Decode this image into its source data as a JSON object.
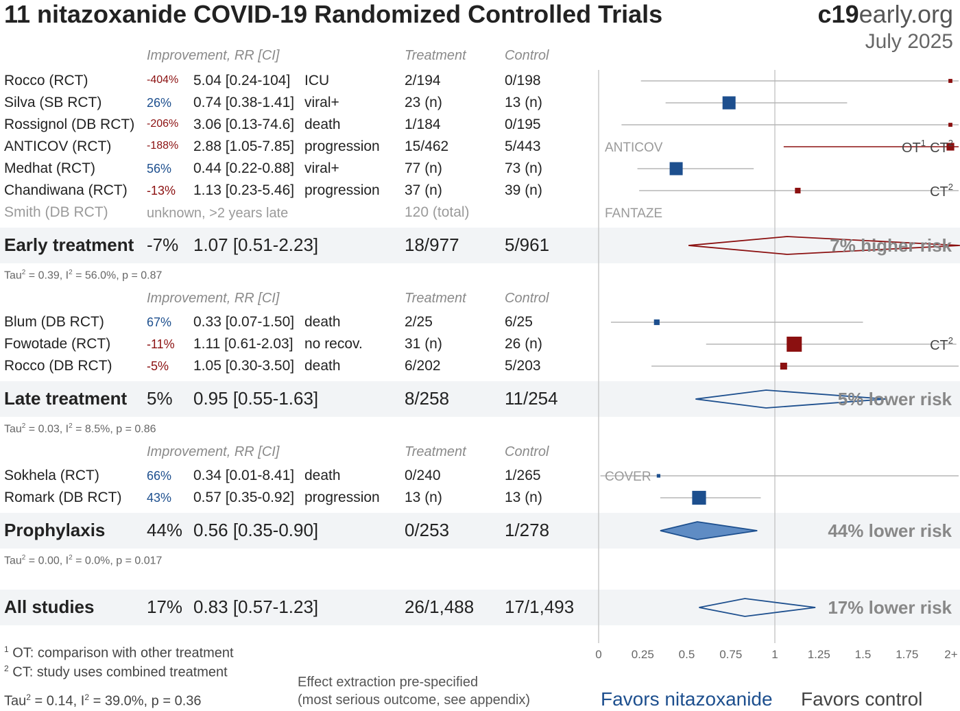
{
  "title": "11 nitazoxanide COVID-19 Randomized Controlled Trials",
  "brand": {
    "part1": "c19",
    "part2": "early.org",
    "date": "July 2025"
  },
  "headers": {
    "improvement": "Improvement, RR [CI]",
    "treatment": "Treatment",
    "control": "Control"
  },
  "sections": [
    {
      "name": "early",
      "studies": [
        {
          "name": "Rocco (RCT)",
          "improvement": "-404%",
          "rr_text": "5.04 [0.24-104]",
          "outcome": "ICU",
          "treatment": "2/194",
          "control": "0/198"
        },
        {
          "name": "Silva (SB RCT)",
          "improvement": "26%",
          "rr_text": "0.74 [0.38-1.41]",
          "outcome": "viral+",
          "treatment": "23 (n)",
          "control": "13 (n)"
        },
        {
          "name": "Rossignol (DB RCT)",
          "improvement": "-206%",
          "rr_text": "3.06 [0.13-74.6]",
          "outcome": "death",
          "treatment": "1/184",
          "control": "0/195"
        },
        {
          "name": "ANTICOV (RCT)",
          "improvement": "-188%",
          "rr_text": "2.88 [1.05-7.85]",
          "outcome": "progression",
          "treatment": "15/462",
          "control": "5/443"
        },
        {
          "name": "Medhat (RCT)",
          "improvement": "56%",
          "rr_text": "0.44 [0.22-0.88]",
          "outcome": "viral+",
          "treatment": "77 (n)",
          "control": "73 (n)"
        },
        {
          "name": "Chandiwana (RCT)",
          "improvement": "-13%",
          "rr_text": "1.13 [0.23-5.46]",
          "outcome": "progression",
          "treatment": "37 (n)",
          "control": "39 (n)"
        },
        {
          "name": "Smith (DB RCT)",
          "improvement": "unknown, >2 years late",
          "rr_text": "",
          "outcome": "",
          "treatment": "120 (total)",
          "control": ""
        }
      ],
      "summary": {
        "label": "Early treatment",
        "improvement": "-7%",
        "rr_text": "1.07 [0.51-2.23]",
        "treatment": "18/977",
        "control": "5/961",
        "risk": "7% higher risk"
      },
      "stats": {
        "tau2": "0.39",
        "i2": "56.0%",
        "p": "0.87"
      }
    },
    {
      "name": "late",
      "studies": [
        {
          "name": "Blum (DB RCT)",
          "improvement": "67%",
          "rr_text": "0.33 [0.07-1.50]",
          "outcome": "death",
          "treatment": "2/25",
          "control": "6/25"
        },
        {
          "name": "Fowotade (RCT)",
          "improvement": "-11%",
          "rr_text": "1.11 [0.61-2.03]",
          "outcome": "no recov.",
          "treatment": "31 (n)",
          "control": "26 (n)"
        },
        {
          "name": "Rocco (DB RCT)",
          "improvement": "-5%",
          "rr_text": "1.05 [0.30-3.50]",
          "outcome": "death",
          "treatment": "6/202",
          "control": "5/203"
        }
      ],
      "summary": {
        "label": "Late treatment",
        "improvement": "5%",
        "rr_text": "0.95 [0.55-1.63]",
        "treatment": "8/258",
        "control": "11/254",
        "risk": "5% lower risk"
      },
      "stats": {
        "tau2": "0.03",
        "i2": "8.5%",
        "p": "0.86"
      }
    },
    {
      "name": "prophylaxis",
      "studies": [
        {
          "name": "Sokhela (RCT)",
          "improvement": "66%",
          "rr_text": "0.34 [0.01-8.41]",
          "outcome": "death",
          "treatment": "0/240",
          "control": "1/265"
        },
        {
          "name": "Romark (DB RCT)",
          "improvement": "43%",
          "rr_text": "0.57 [0.35-0.92]",
          "outcome": "progression",
          "treatment": "13 (n)",
          "control": "13 (n)"
        }
      ],
      "summary": {
        "label": "Prophylaxis",
        "improvement": "44%",
        "rr_text": "0.56 [0.35-0.90]",
        "treatment": "0/253",
        "control": "1/278",
        "risk": "44% lower risk"
      },
      "stats": {
        "tau2": "0.00",
        "i2": "0.0%",
        "p": "0.017"
      }
    }
  ],
  "all": {
    "label": "All studies",
    "improvement": "17%",
    "rr_text": "0.83 [0.57-1.23]",
    "treatment": "26/1,488",
    "control": "17/1,493",
    "risk": "17% lower risk"
  },
  "all_stats": {
    "tau2": "0.14",
    "i2": "39.0%",
    "p": "0.36"
  },
  "footnotes": [
    "OT: comparison with other treatment",
    "CT: study uses combined treatment"
  ],
  "extraction_note": [
    "Effect extraction pre-specified",
    "(most serious outcome, see appendix)"
  ],
  "legend": {
    "favors_left": "Favors nitazoxanide",
    "favors_right": "Favors control"
  },
  "colors": {
    "favor": "#1d4f8e",
    "against": "#8b1010",
    "grid": "#c8c8c8",
    "band": "#f2f4f6",
    "pro_fill": "#5f8cc4"
  },
  "chart_data": {
    "type": "forest",
    "xlim": [
      0,
      2
    ],
    "ticks": [
      "0",
      "0.25",
      "0.5",
      "0.75",
      "1",
      "1.25",
      "1.5",
      "1.75",
      "2+"
    ],
    "reference_line": 1,
    "plot_tags": [
      {
        "text": "ANTICOV",
        "row": "ANTICOV (RCT)"
      },
      {
        "text": "FANTAZE",
        "row": "Smith (DB RCT)"
      },
      {
        "text": "COVER",
        "row": "Sokhela (RCT)"
      }
    ],
    "studies": [
      {
        "name": "Rocco (RCT)",
        "rr": 5.04,
        "lo": 0.24,
        "hi": 104,
        "weight": 0.3,
        "marks": []
      },
      {
        "name": "Silva (SB RCT)",
        "rr": 0.74,
        "lo": 0.38,
        "hi": 1.41,
        "weight": 2.5,
        "marks": []
      },
      {
        "name": "Rossignol (DB RCT)",
        "rr": 3.06,
        "lo": 0.13,
        "hi": 74.6,
        "weight": 0.3,
        "marks": []
      },
      {
        "name": "ANTICOV (RCT)",
        "rr": 2.88,
        "lo": 1.05,
        "hi": 7.85,
        "weight": 1.2,
        "marks": [
          "OT1",
          "CT2"
        ]
      },
      {
        "name": "Medhat (RCT)",
        "rr": 0.44,
        "lo": 0.22,
        "hi": 0.88,
        "weight": 2.5,
        "marks": []
      },
      {
        "name": "Chandiwana (RCT)",
        "rr": 1.13,
        "lo": 0.23,
        "hi": 5.46,
        "weight": 0.7,
        "marks": [
          "CT2"
        ]
      },
      {
        "name": "Blum (DB RCT)",
        "rr": 0.33,
        "lo": 0.07,
        "hi": 1.5,
        "weight": 0.7,
        "marks": []
      },
      {
        "name": "Fowotade (RCT)",
        "rr": 1.11,
        "lo": 0.61,
        "hi": 2.03,
        "weight": 3.0,
        "marks": [
          "CT2"
        ]
      },
      {
        "name": "Rocco (DB RCT)",
        "rr": 1.05,
        "lo": 0.3,
        "hi": 3.5,
        "weight": 1.0,
        "marks": []
      },
      {
        "name": "Sokhela (RCT)",
        "rr": 0.34,
        "lo": 0.01,
        "hi": 8.41,
        "weight": 0.2,
        "marks": []
      },
      {
        "name": "Romark (DB RCT)",
        "rr": 0.57,
        "lo": 0.35,
        "hi": 0.92,
        "weight": 2.7,
        "marks": []
      }
    ],
    "summaries": [
      {
        "name": "Early treatment",
        "rr": 1.07,
        "lo": 0.51,
        "hi": 2.23,
        "style": "outline-against"
      },
      {
        "name": "Late treatment",
        "rr": 0.95,
        "lo": 0.55,
        "hi": 1.63,
        "style": "outline-favor"
      },
      {
        "name": "Prophylaxis",
        "rr": 0.56,
        "lo": 0.35,
        "hi": 0.9,
        "style": "filled-favor"
      },
      {
        "name": "All studies",
        "rr": 0.83,
        "lo": 0.57,
        "hi": 1.23,
        "style": "outline-favor"
      }
    ]
  }
}
